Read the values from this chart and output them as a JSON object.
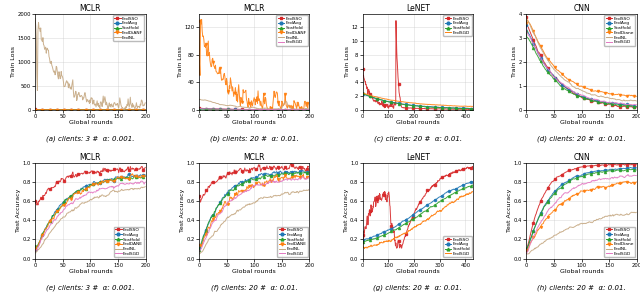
{
  "subplots": [
    {
      "title": "MCLR",
      "xlabel": "Global rounds",
      "ylabel": "Train Loss",
      "xlim": [
        0,
        200
      ],
      "ylim": [
        0,
        2000
      ],
      "yticks": [
        0,
        500,
        1000,
        1500,
        2000
      ],
      "xticks": [
        0,
        50,
        100,
        150,
        200
      ],
      "caption": "(a) clients: 3 #  α: 0.001.",
      "legend": [
        "FedSSO",
        "FedAvg",
        "Scaffold",
        "FedDiANF",
        "FedNL"
      ],
      "colors": [
        "#d62728",
        "#1f77b4",
        "#2ca02c",
        "#ff7f0e",
        "#c5a882"
      ],
      "styles": [
        "-",
        "-",
        "-",
        "-",
        "-"
      ],
      "markers": [
        "s",
        "o",
        "^",
        "v",
        ""
      ]
    },
    {
      "title": "MCLR",
      "xlabel": "Global rounds",
      "ylabel": "Train Loss",
      "xlim": [
        0,
        200
      ],
      "ylim": [
        0,
        140
      ],
      "yticks": [
        0,
        40,
        80,
        120
      ],
      "xticks": [
        0,
        50,
        100,
        150,
        200
      ],
      "caption": "(b) clients: 20 #  α: 0.01.",
      "legend": [
        "FedSSO",
        "FedAvg",
        "Scaffold",
        "FedDiANF",
        "FedNL",
        "FedSGD"
      ],
      "colors": [
        "#d62728",
        "#1f77b4",
        "#2ca02c",
        "#ff7f0e",
        "#c5a882",
        "#e377c2"
      ],
      "styles": [
        "-",
        "-",
        "-",
        "-",
        "-",
        "-"
      ],
      "markers": [
        "s",
        "o",
        "^",
        "v",
        "",
        ""
      ]
    },
    {
      "title": "LeNET",
      "xlabel": "Global rounds",
      "ylabel": "Train Loss",
      "xlim": [
        0,
        430
      ],
      "ylim": [
        0,
        14
      ],
      "yticks": [
        0,
        2,
        4,
        6,
        8,
        10,
        12
      ],
      "xticks": [
        0,
        100,
        200,
        300,
        400
      ],
      "caption": "(c) clients: 20 #  α: 0.01.",
      "legend": [
        "FedSSO",
        "FedAvg",
        "Scaffold",
        "FedSGD"
      ],
      "colors": [
        "#d62728",
        "#1f77b4",
        "#2ca02c",
        "#ff7f0e"
      ],
      "styles": [
        "-",
        "-",
        "-",
        "-"
      ],
      "markers": [
        "s",
        "o",
        "^",
        ""
      ]
    },
    {
      "title": "CNN",
      "xlabel": "Global rounds",
      "ylabel": "Train Loss",
      "xlim": [
        0,
        200
      ],
      "ylim": [
        0,
        4.0
      ],
      "yticks": [
        0.0,
        1.0,
        2.0,
        3.0,
        4.0
      ],
      "xticks": [
        0,
        50,
        100,
        150,
        200
      ],
      "caption": "(d) clients: 20 #  α: 0.01.",
      "legend": [
        "FedSSO",
        "FedAvg",
        "Scaffold",
        "FedDiane",
        "FedNL",
        "FedSGD"
      ],
      "colors": [
        "#d62728",
        "#1f77b4",
        "#2ca02c",
        "#ff7f0e",
        "#c5a882",
        "#e377c2"
      ],
      "styles": [
        "-",
        "-",
        "-",
        "-",
        "-",
        "-"
      ],
      "markers": [
        "s",
        "o",
        "^",
        "v",
        "",
        ""
      ]
    },
    {
      "title": "MCLR",
      "xlabel": "Global rounds",
      "ylabel": "Test Accuracy",
      "xlim": [
        0,
        200
      ],
      "ylim": [
        0,
        1.0
      ],
      "yticks": [
        0.0,
        0.2,
        0.4,
        0.6,
        0.8,
        1.0
      ],
      "xticks": [
        0,
        50,
        100,
        150,
        200
      ],
      "caption": "(e) clients: 3 #  α: 0.001.",
      "legend": [
        "FedSSO",
        "FedAvg",
        "Scaffold",
        "FedDANE",
        "FedNL",
        "FedSGD"
      ],
      "colors": [
        "#d62728",
        "#1f77b4",
        "#2ca02c",
        "#ff7f0e",
        "#c5a882",
        "#e377c2"
      ],
      "styles": [
        "-",
        "-",
        "-",
        "-",
        "-",
        "-"
      ],
      "markers": [
        "s",
        "o",
        "^",
        "v",
        "",
        ""
      ]
    },
    {
      "title": "MCLR",
      "xlabel": "Global rounds",
      "ylabel": "Test Accuracy",
      "xlim": [
        0,
        200
      ],
      "ylim": [
        0,
        1.0
      ],
      "yticks": [
        0.0,
        0.2,
        0.4,
        0.6,
        0.8,
        1.0
      ],
      "xticks": [
        0,
        50,
        100,
        150,
        200
      ],
      "caption": "(f) clients: 20 #  α: 0.01.",
      "legend": [
        "FedSSO",
        "FedAvg",
        "Scaffold",
        "FedDANE",
        "FedNL",
        "FedSGD"
      ],
      "colors": [
        "#d62728",
        "#1f77b4",
        "#2ca02c",
        "#ff7f0e",
        "#c5a882",
        "#e377c2"
      ],
      "styles": [
        "-",
        "-",
        "-",
        "-",
        "-",
        "-"
      ],
      "markers": [
        "s",
        "o",
        "^",
        "v",
        "",
        ""
      ]
    },
    {
      "title": "LeNET",
      "xlabel": "Global rounds",
      "ylabel": "Test Accuracy",
      "xlim": [
        0,
        430
      ],
      "ylim": [
        0,
        1.0
      ],
      "yticks": [
        0.0,
        0.2,
        0.4,
        0.6,
        0.8,
        1.0
      ],
      "xticks": [
        0,
        100,
        200,
        300,
        400
      ],
      "caption": "(g) clients: 20 #  α: 0.01.",
      "legend": [
        "FedSSO",
        "FedAvg",
        "Scaffold",
        "FedSGD"
      ],
      "colors": [
        "#d62728",
        "#1f77b4",
        "#2ca02c",
        "#ff7f0e"
      ],
      "styles": [
        "-",
        "-",
        "-",
        "-"
      ],
      "markers": [
        "s",
        "o",
        "^",
        ""
      ]
    },
    {
      "title": "CNN",
      "xlabel": "Global rounds",
      "ylabel": "Test Accuracy",
      "xlim": [
        0,
        200
      ],
      "ylim": [
        0,
        1.0
      ],
      "yticks": [
        0.0,
        0.2,
        0.4,
        0.6,
        0.8,
        1.0
      ],
      "xticks": [
        0,
        50,
        100,
        150,
        200
      ],
      "caption": "(h) clients: 20 #  α: 0.01.",
      "legend": [
        "FedSSO",
        "FedAvg",
        "Scaffold",
        "FedDiane",
        "FedNL",
        "FedSGD"
      ],
      "colors": [
        "#d62728",
        "#1f77b4",
        "#2ca02c",
        "#ff7f0e",
        "#c5a882",
        "#e377c2"
      ],
      "styles": [
        "-",
        "-",
        "-",
        "-",
        "-",
        "-"
      ],
      "markers": [
        "s",
        "o",
        "^",
        "v",
        "",
        ""
      ]
    }
  ],
  "figure_bg": "#ffffff",
  "axes_bg": "#ffffff",
  "grid_color": "#cccccc"
}
